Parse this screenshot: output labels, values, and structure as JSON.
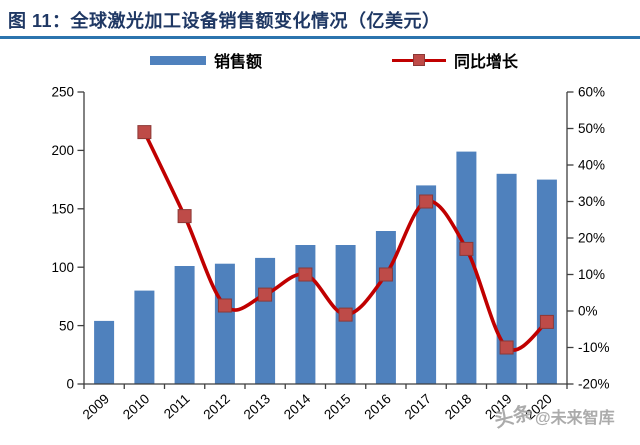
{
  "header": {
    "title": "图 11：全球激光加工设备销售额变化情况（亿美元）"
  },
  "watermark": {
    "logo": "头条",
    "handle": "@未来智库"
  },
  "colors": {
    "bar": "#4F81BD",
    "line": "#C00000",
    "marker": "#BE4B48",
    "marker_stroke": "#8C3836",
    "title": "#1F3864",
    "divider": "#2B74AE",
    "axis": "#3F3F3F",
    "tick_text": "#000000",
    "watermark": "#A2A2A2"
  },
  "chart_data": {
    "type": "bar",
    "title": "全球激光加工设备销售额变化情况（亿美元）",
    "categories": [
      "2009",
      "2010",
      "2011",
      "2012",
      "2013",
      "2014",
      "2015",
      "2016",
      "2017",
      "2018",
      "2019",
      "2020"
    ],
    "series": [
      {
        "name": "销售额",
        "type": "bar",
        "axis": "left",
        "unit": "亿美元",
        "values": [
          54,
          80,
          101,
          103,
          108,
          119,
          119,
          131,
          170,
          199,
          180,
          175
        ]
      },
      {
        "name": "同比增长",
        "type": "line",
        "axis": "right",
        "unit": "%",
        "values": [
          null,
          49,
          26,
          1.5,
          4.5,
          10,
          -1,
          10,
          30,
          17,
          -10,
          -3
        ]
      }
    ],
    "left_axis": {
      "min": 0,
      "max": 250,
      "step": 50,
      "ticks": [
        "0",
        "50",
        "100",
        "150",
        "200",
        "250"
      ]
    },
    "right_axis": {
      "min": -20,
      "max": 60,
      "step": 10,
      "ticks": [
        "-20%",
        "-10%",
        "0%",
        "10%",
        "20%",
        "30%",
        "40%",
        "50%",
        "60%"
      ]
    },
    "grid": false,
    "legend_position": "top",
    "x_label_rotation": -42
  }
}
